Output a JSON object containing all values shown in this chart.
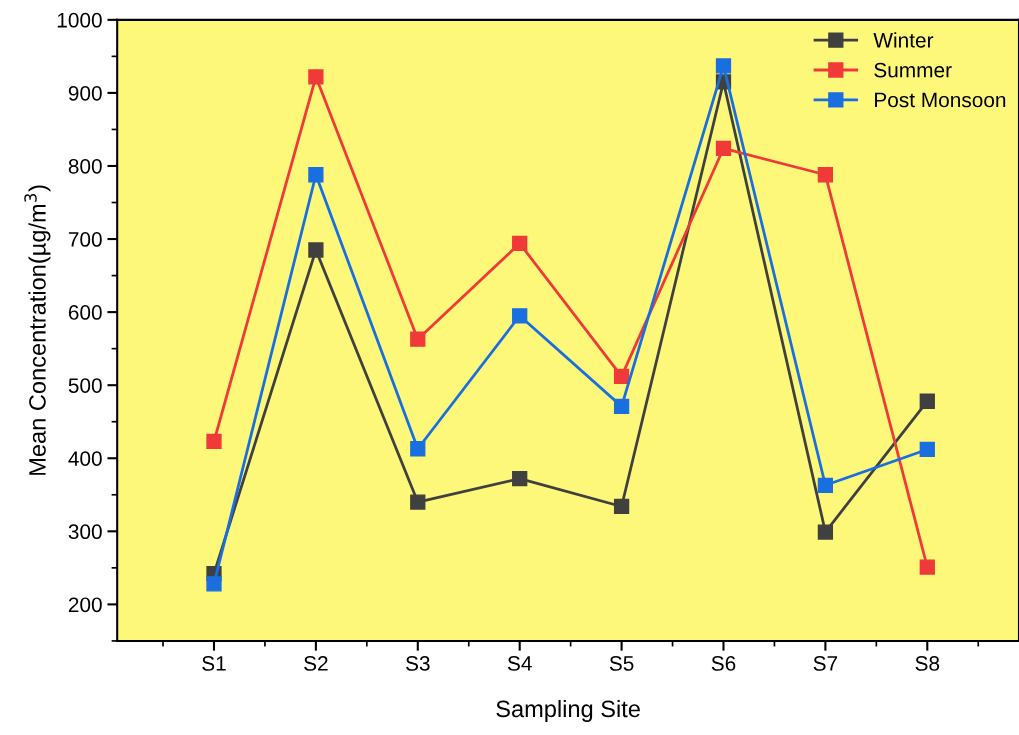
{
  "chart_data": {
    "type": "line",
    "xlabel": "Sampling Site",
    "ylabel": "Mean Concentration(µg/m$^{3}$)",
    "categories": [
      "S1",
      "S2",
      "S3",
      "S4",
      "S5",
      "S6",
      "S7",
      "S8"
    ],
    "series": [
      {
        "name": "Winter",
        "color": "#404040",
        "values": [
          242,
          685,
          340,
          372,
          334,
          915,
          299,
          478
        ]
      },
      {
        "name": "Summer",
        "color": "#f03a3a",
        "values": [
          423,
          922,
          563,
          694,
          512,
          824,
          788,
          251
        ]
      },
      {
        "name": "Post Monsoon",
        "color": "#1a6fe0",
        "values": [
          228,
          788,
          413,
          595,
          471,
          937,
          363,
          412
        ]
      }
    ],
    "ylim": [
      150,
      1000
    ],
    "yticks": [
      200,
      300,
      400,
      500,
      600,
      700,
      800,
      900,
      1000
    ],
    "grid": false,
    "legend": "top right",
    "marker": "square",
    "line_style": "solid"
  }
}
